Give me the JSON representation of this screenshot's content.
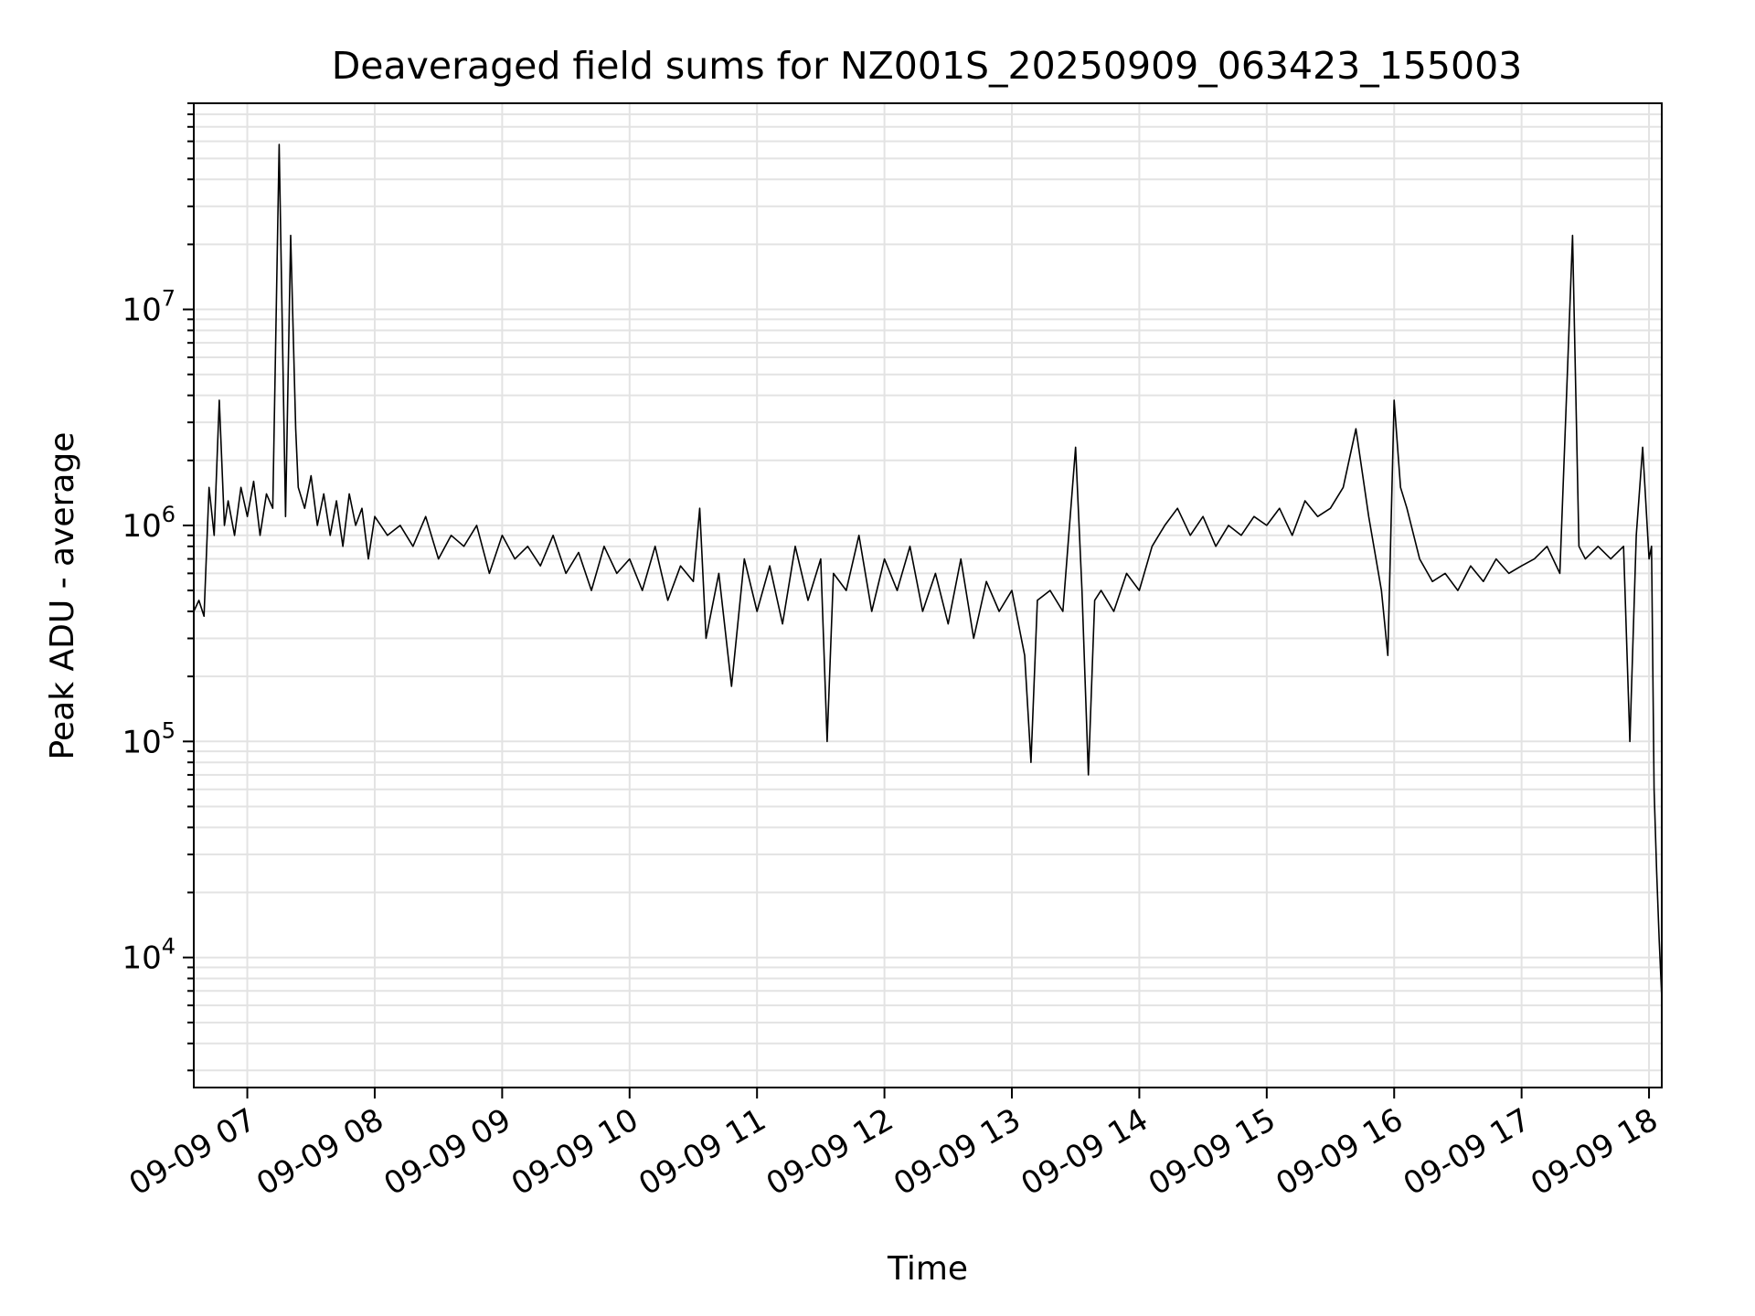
{
  "chart_data": {
    "type": "line",
    "title": "Deaveraged field sums for NZ001S_20250909_063423_155003",
    "xlabel": "Time",
    "ylabel": "Peak ADU - average",
    "x_tick_labels": [
      "09-09 07",
      "09-09 08",
      "09-09 09",
      "09-09 10",
      "09-09 11",
      "09-09 12",
      "09-09 13",
      "09-09 14",
      "09-09 15",
      "09-09 16",
      "09-09 17",
      "09-09 18"
    ],
    "x_ticks_hours": [
      7,
      8,
      9,
      10,
      11,
      12,
      13,
      14,
      15,
      16,
      17,
      18
    ],
    "y_tick_labels": [
      {
        "base": "10",
        "exp": "4",
        "value": 10000
      },
      {
        "base": "10",
        "exp": "5",
        "value": 100000
      },
      {
        "base": "10",
        "exp": "6",
        "value": 1000000
      },
      {
        "base": "10",
        "exp": "7",
        "value": 10000000
      }
    ],
    "y_scale": "log",
    "xlim_hours": [
      6.58,
      18.1
    ],
    "ylim": [
      2500,
      90000000
    ],
    "grid": true,
    "line_color": "#000000",
    "grid_color": "#e3e3e3",
    "series": [
      {
        "x_hours": [
          6.58,
          6.62,
          6.66,
          6.7,
          6.74,
          6.78,
          6.82,
          6.85,
          6.9,
          6.95,
          7.0,
          7.05,
          7.1,
          7.15,
          7.2,
          7.25,
          7.3,
          7.34,
          7.38,
          7.4,
          7.45,
          7.5,
          7.55,
          7.6,
          7.65,
          7.7,
          7.75,
          7.8,
          7.85,
          7.9,
          7.95,
          8.0,
          8.1,
          8.2,
          8.3,
          8.4,
          8.5,
          8.6,
          8.7,
          8.8,
          8.9,
          9.0,
          9.1,
          9.2,
          9.3,
          9.4,
          9.5,
          9.6,
          9.7,
          9.8,
          9.9,
          10.0,
          10.1,
          10.2,
          10.3,
          10.4,
          10.5,
          10.55,
          10.6,
          10.7,
          10.8,
          10.9,
          11.0,
          11.1,
          11.2,
          11.3,
          11.4,
          11.5,
          11.55,
          11.6,
          11.7,
          11.8,
          11.9,
          12.0,
          12.1,
          12.2,
          12.3,
          12.4,
          12.5,
          12.6,
          12.7,
          12.8,
          12.9,
          13.0,
          13.1,
          13.15,
          13.2,
          13.3,
          13.4,
          13.5,
          13.55,
          13.6,
          13.65,
          13.7,
          13.8,
          13.9,
          14.0,
          14.1,
          14.2,
          14.3,
          14.4,
          14.5,
          14.6,
          14.7,
          14.8,
          14.9,
          15.0,
          15.1,
          15.2,
          15.3,
          15.4,
          15.5,
          15.6,
          15.7,
          15.8,
          15.9,
          15.95,
          16.0,
          16.05,
          16.1,
          16.2,
          16.3,
          16.4,
          16.5,
          16.6,
          16.7,
          16.8,
          16.9,
          17.0,
          17.1,
          17.2,
          17.3,
          17.4,
          17.45,
          17.5,
          17.6,
          17.7,
          17.8,
          17.85,
          17.9,
          17.95,
          18.0,
          18.02,
          18.04,
          18.06,
          18.08,
          18.1
        ],
        "y": [
          400000,
          450000,
          380000,
          1500000,
          900000,
          3800000,
          1000000,
          1300000,
          900000,
          1500000,
          1100000,
          1600000,
          900000,
          1400000,
          1200000,
          58000000,
          1100000,
          22000000,
          2800000,
          1500000,
          1200000,
          1700000,
          1000000,
          1400000,
          900000,
          1300000,
          800000,
          1400000,
          1000000,
          1200000,
          700000,
          1100000,
          900000,
          1000000,
          800000,
          1100000,
          700000,
          900000,
          800000,
          1000000,
          600000,
          900000,
          700000,
          800000,
          650000,
          900000,
          600000,
          750000,
          500000,
          800000,
          600000,
          700000,
          500000,
          800000,
          450000,
          650000,
          550000,
          1200000,
          300000,
          600000,
          180000,
          700000,
          400000,
          650000,
          350000,
          800000,
          450000,
          700000,
          100000,
          600000,
          500000,
          900000,
          400000,
          700000,
          500000,
          800000,
          400000,
          600000,
          350000,
          700000,
          300000,
          550000,
          400000,
          500000,
          250000,
          80000,
          450000,
          500000,
          400000,
          2300000,
          500000,
          70000,
          450000,
          500000,
          400000,
          600000,
          500000,
          800000,
          1000000,
          1200000,
          900000,
          1100000,
          800000,
          1000000,
          900000,
          1100000,
          1000000,
          1200000,
          900000,
          1300000,
          1100000,
          1200000,
          1500000,
          2800000,
          1100000,
          500000,
          250000,
          3800000,
          1500000,
          1200000,
          700000,
          550000,
          600000,
          500000,
          650000,
          550000,
          700000,
          600000,
          650000,
          700000,
          800000,
          600000,
          22000000,
          800000,
          700000,
          800000,
          700000,
          800000,
          100000,
          900000,
          2300000,
          700000,
          800000,
          60000,
          25000,
          12000,
          6500
        ]
      }
    ]
  }
}
